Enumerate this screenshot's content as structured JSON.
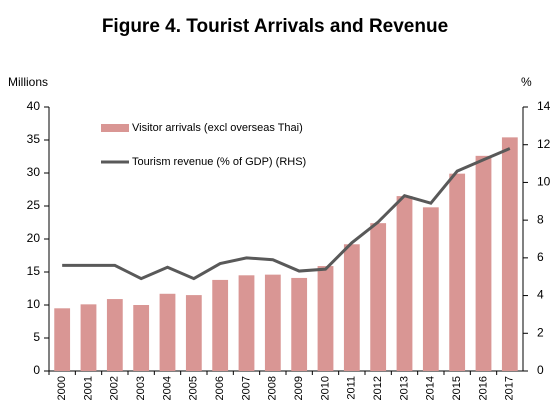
{
  "chart_data": {
    "type": "bar",
    "title": "Figure 4. Tourist Arrivals and Revenue",
    "ylabel": "Millions",
    "y2label": "%",
    "categories": [
      "2000",
      "2001",
      "2002",
      "2003",
      "2004",
      "2005",
      "2006",
      "2007",
      "2008",
      "2009",
      "2010",
      "2011",
      "2012",
      "2013",
      "2014",
      "2015",
      "2016",
      "2017"
    ],
    "series": [
      {
        "name": "Visitor arrivals (excl overseas Thai)",
        "type": "bar",
        "color": "#d99694",
        "values": [
          9.5,
          10.1,
          10.9,
          10.0,
          11.7,
          11.5,
          13.8,
          14.5,
          14.6,
          14.1,
          15.9,
          19.2,
          22.4,
          26.5,
          24.8,
          29.9,
          32.6,
          35.4
        ]
      },
      {
        "name": "Tourism revenue (% of GDP) (RHS)",
        "type": "line",
        "axis": "y2",
        "color": "#595959",
        "values": [
          5.6,
          5.6,
          5.6,
          4.9,
          5.5,
          4.9,
          5.7,
          6.0,
          5.9,
          5.3,
          5.4,
          6.8,
          7.9,
          9.3,
          8.9,
          10.6,
          11.2,
          11.8
        ]
      }
    ],
    "ylim": [
      0,
      40
    ],
    "yticks": [
      0,
      5,
      10,
      15,
      20,
      25,
      30,
      35,
      40
    ],
    "y2lim": [
      0,
      14
    ],
    "y2ticks": [
      0,
      2,
      4,
      6,
      8,
      10,
      12,
      14
    ],
    "legend": "upper left"
  }
}
